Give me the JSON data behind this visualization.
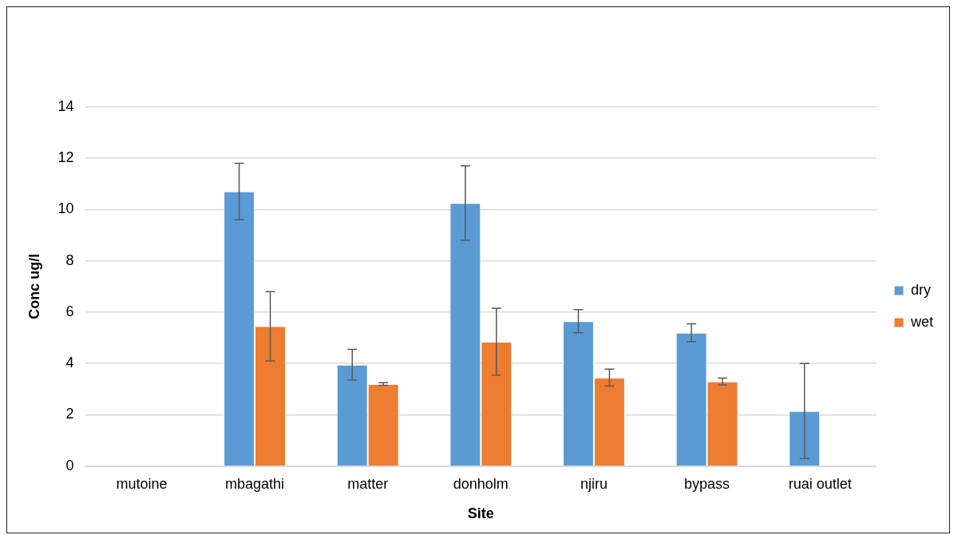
{
  "chart_data": {
    "type": "bar",
    "xlabel": "Site",
    "ylabel": "Conc ug/l",
    "categories": [
      "mutoine",
      "mbagathi",
      "matter",
      "donholm",
      "njiru",
      "bypass",
      "ruai outlet"
    ],
    "series": [
      {
        "name": "dry",
        "color": "#5b9bd5",
        "values": [
          null,
          10.7,
          3.95,
          10.25,
          5.65,
          5.2,
          2.15
        ],
        "errors": [
          null,
          1.1,
          0.6,
          1.45,
          0.45,
          0.35,
          1.85
        ]
      },
      {
        "name": "wet",
        "color": "#ed7d31",
        "values": [
          null,
          5.45,
          3.2,
          4.85,
          3.45,
          3.3,
          null
        ],
        "errors": [
          null,
          1.35,
          0.05,
          1.3,
          0.33,
          0.13,
          null
        ]
      }
    ],
    "ylim": [
      0,
      14
    ],
    "yticks": [
      0,
      2,
      4,
      6,
      8,
      10,
      12,
      14
    ],
    "grid": "y",
    "legend": "right"
  }
}
